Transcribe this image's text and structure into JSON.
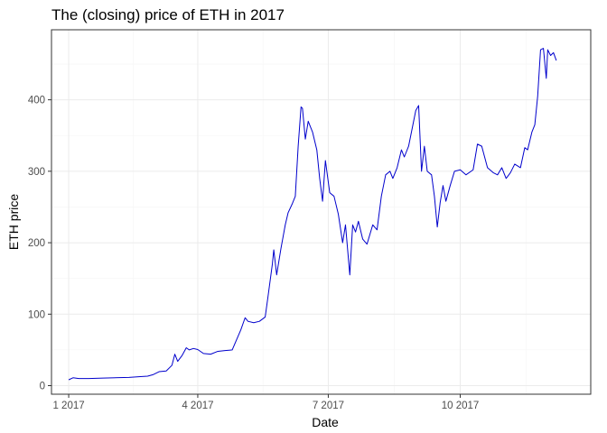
{
  "chart_data": {
    "type": "line",
    "title": "The (closing) price of ETH in 2017",
    "xlabel": "Date",
    "ylabel": "ETH price",
    "x_ticks": [
      {
        "date": "2017-01-01",
        "label": "1 2017"
      },
      {
        "date": "2017-04-01",
        "label": "4 2017"
      },
      {
        "date": "2017-07-01",
        "label": "7 2017"
      },
      {
        "date": "2017-10-01",
        "label": "10 2017"
      }
    ],
    "y_ticks": [
      0,
      100,
      200,
      300,
      400
    ],
    "xlim": [
      "2016-12-20",
      "2017-12-31"
    ],
    "ylim": [
      -12,
      498
    ],
    "grid": true,
    "line_color": "#0000cc",
    "series": [
      {
        "points": [
          [
            "2017-01-01",
            8.2
          ],
          [
            "2017-01-04",
            11.0
          ],
          [
            "2017-01-08",
            10.0
          ],
          [
            "2017-01-15",
            9.9
          ],
          [
            "2017-01-25",
            10.6
          ],
          [
            "2017-02-05",
            11.2
          ],
          [
            "2017-02-12",
            11.5
          ],
          [
            "2017-02-20",
            12.6
          ],
          [
            "2017-02-25",
            13.2
          ],
          [
            "2017-03-01",
            15.5
          ],
          [
            "2017-03-05",
            19.5
          ],
          [
            "2017-03-10",
            20.5
          ],
          [
            "2017-03-14",
            28.5
          ],
          [
            "2017-03-16",
            44.0
          ],
          [
            "2017-03-18",
            34.0
          ],
          [
            "2017-03-21",
            42.0
          ],
          [
            "2017-03-24",
            53.0
          ],
          [
            "2017-03-26",
            50.0
          ],
          [
            "2017-03-29",
            52.0
          ],
          [
            "2017-04-01",
            50.5
          ],
          [
            "2017-04-05",
            45.0
          ],
          [
            "2017-04-10",
            44.0
          ],
          [
            "2017-04-15",
            48.0
          ],
          [
            "2017-04-20",
            49.0
          ],
          [
            "2017-04-25",
            50.0
          ],
          [
            "2017-04-28",
            64.0
          ],
          [
            "2017-05-01",
            78.0
          ],
          [
            "2017-05-04",
            95.0
          ],
          [
            "2017-05-06",
            90.0
          ],
          [
            "2017-05-10",
            88.0
          ],
          [
            "2017-05-14",
            90.0
          ],
          [
            "2017-05-18",
            96.0
          ],
          [
            "2017-05-20",
            125.0
          ],
          [
            "2017-05-23",
            170.0
          ],
          [
            "2017-05-24",
            190.0
          ],
          [
            "2017-05-26",
            155.0
          ],
          [
            "2017-05-29",
            192.0
          ],
          [
            "2017-06-01",
            225.0
          ],
          [
            "2017-06-03",
            242.0
          ],
          [
            "2017-06-06",
            255.0
          ],
          [
            "2017-06-08",
            265.0
          ],
          [
            "2017-06-10",
            335.0
          ],
          [
            "2017-06-12",
            390.0
          ],
          [
            "2017-06-13",
            388.0
          ],
          [
            "2017-06-15",
            345.0
          ],
          [
            "2017-06-17",
            370.0
          ],
          [
            "2017-06-20",
            355.0
          ],
          [
            "2017-06-23",
            330.0
          ],
          [
            "2017-06-25",
            290.0
          ],
          [
            "2017-06-27",
            258.0
          ],
          [
            "2017-06-29",
            315.0
          ],
          [
            "2017-07-02",
            270.0
          ],
          [
            "2017-07-05",
            265.0
          ],
          [
            "2017-07-08",
            240.0
          ],
          [
            "2017-07-11",
            200.0
          ],
          [
            "2017-07-13",
            225.0
          ],
          [
            "2017-07-16",
            155.0
          ],
          [
            "2017-07-18",
            225.0
          ],
          [
            "2017-07-20",
            215.0
          ],
          [
            "2017-07-22",
            230.0
          ],
          [
            "2017-07-25",
            205.0
          ],
          [
            "2017-07-28",
            198.0
          ],
          [
            "2017-08-01",
            225.0
          ],
          [
            "2017-08-04",
            218.0
          ],
          [
            "2017-08-07",
            265.0
          ],
          [
            "2017-08-10",
            295.0
          ],
          [
            "2017-08-13",
            300.0
          ],
          [
            "2017-08-15",
            290.0
          ],
          [
            "2017-08-18",
            305.0
          ],
          [
            "2017-08-21",
            330.0
          ],
          [
            "2017-08-23",
            320.0
          ],
          [
            "2017-08-26",
            335.0
          ],
          [
            "2017-08-29",
            365.0
          ],
          [
            "2017-08-31",
            385.0
          ],
          [
            "2017-09-02",
            392.0
          ],
          [
            "2017-09-04",
            300.0
          ],
          [
            "2017-09-06",
            335.0
          ],
          [
            "2017-09-08",
            300.0
          ],
          [
            "2017-09-11",
            295.0
          ],
          [
            "2017-09-13",
            265.0
          ],
          [
            "2017-09-15",
            222.0
          ],
          [
            "2017-09-17",
            256.0
          ],
          [
            "2017-09-19",
            280.0
          ],
          [
            "2017-09-21",
            258.0
          ],
          [
            "2017-09-24",
            280.0
          ],
          [
            "2017-09-27",
            300.0
          ],
          [
            "2017-10-01",
            302.0
          ],
          [
            "2017-10-05",
            295.0
          ],
          [
            "2017-10-10",
            302.0
          ],
          [
            "2017-10-13",
            338.0
          ],
          [
            "2017-10-16",
            335.0
          ],
          [
            "2017-10-20",
            305.0
          ],
          [
            "2017-10-24",
            298.0
          ],
          [
            "2017-10-27",
            295.0
          ],
          [
            "2017-10-30",
            305.0
          ],
          [
            "2017-11-02",
            290.0
          ],
          [
            "2017-11-05",
            298.0
          ],
          [
            "2017-11-08",
            310.0
          ],
          [
            "2017-11-12",
            305.0
          ],
          [
            "2017-11-15",
            333.0
          ],
          [
            "2017-11-17",
            330.0
          ],
          [
            "2017-11-20",
            355.0
          ],
          [
            "2017-11-22",
            365.0
          ],
          [
            "2017-11-24",
            405.0
          ],
          [
            "2017-11-26",
            470.0
          ],
          [
            "2017-11-28",
            472.0
          ],
          [
            "2017-11-30",
            430.0
          ],
          [
            "2017-12-01",
            470.0
          ],
          [
            "2017-12-03",
            462.0
          ],
          [
            "2017-12-05",
            466.0
          ],
          [
            "2017-12-07",
            455.0
          ]
        ]
      }
    ]
  }
}
